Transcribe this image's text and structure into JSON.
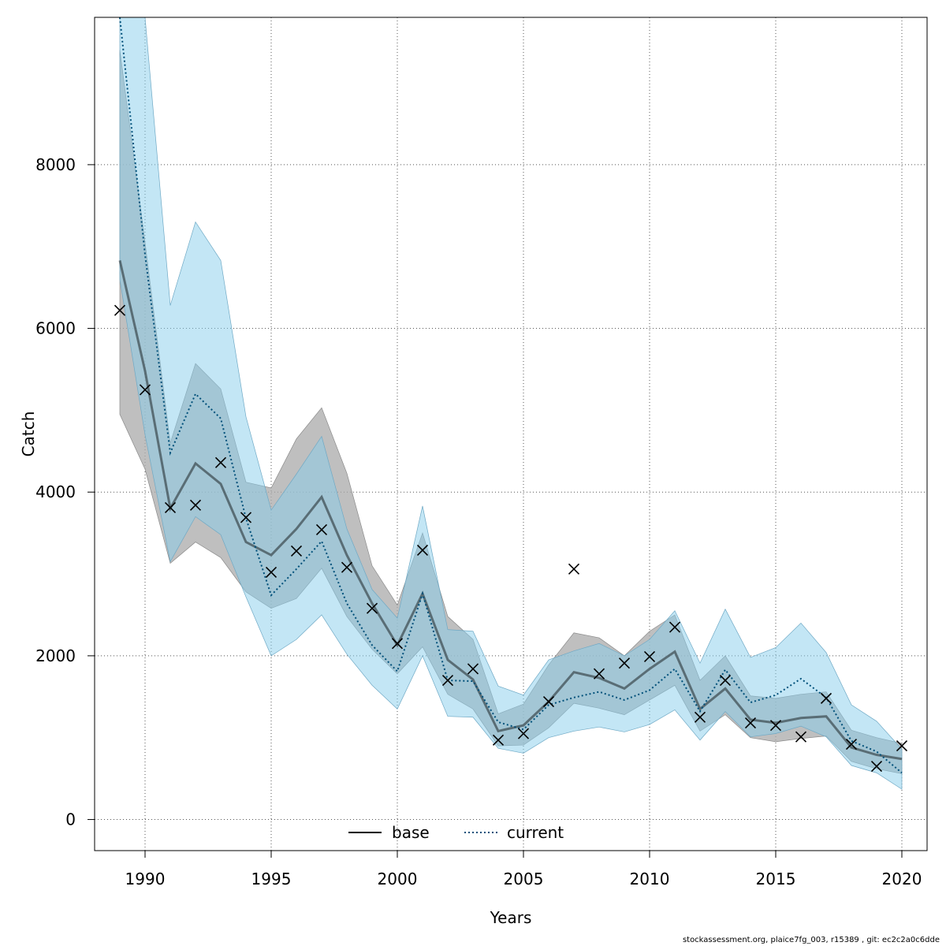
{
  "chart_data": {
    "type": "line",
    "xlabel": "Years",
    "ylabel": "Catch",
    "xlim": [
      1988,
      2021
    ],
    "ylim": [
      -380,
      9800
    ],
    "x_ticks": [
      1990,
      1995,
      2000,
      2005,
      2010,
      2015,
      2020
    ],
    "y_ticks": [
      0,
      2000,
      4000,
      6000,
      8000
    ],
    "grid": true,
    "legend_position": "bottom-center",
    "colors": {
      "base_line": "#000000",
      "base_band": "#a9a9a9",
      "current_line": "#00507a",
      "current_band": "#87ceeb",
      "observed": "#000000"
    },
    "x": [
      1989,
      1990,
      1991,
      1992,
      1993,
      1994,
      1995,
      1996,
      1997,
      1998,
      1999,
      2000,
      2001,
      2002,
      2003,
      2004,
      2005,
      2006,
      2007,
      2008,
      2009,
      2010,
      2011,
      2012,
      2013,
      2014,
      2015,
      2016,
      2017,
      2018,
      2019,
      2020
    ],
    "series": [
      {
        "name": "base",
        "style": "solid",
        "values": [
          6830,
          5480,
          3800,
          4350,
          4100,
          3390,
          3230,
          3550,
          3940,
          3230,
          2640,
          2130,
          2760,
          1950,
          1710,
          1080,
          1150,
          1440,
          1800,
          1730,
          1600,
          1840,
          2050,
          1350,
          1600,
          1220,
          1180,
          1240,
          1260,
          880,
          790,
          740
        ],
        "lower": [
          4950,
          4280,
          3130,
          3390,
          3200,
          2780,
          2580,
          2700,
          3070,
          2480,
          2080,
          1780,
          2110,
          1530,
          1350,
          900,
          910,
          1120,
          1420,
          1360,
          1280,
          1460,
          1640,
          1080,
          1280,
          1000,
          950,
          990,
          1020,
          710,
          620,
          560
        ],
        "upper": [
          9400,
          7050,
          4600,
          5570,
          5260,
          4120,
          4050,
          4650,
          5030,
          4230,
          3100,
          2620,
          3500,
          2480,
          2200,
          1290,
          1410,
          1890,
          2280,
          2220,
          2000,
          2300,
          2500,
          1700,
          2000,
          1510,
          1480,
          1530,
          1560,
          1090,
          1000,
          930
        ]
      },
      {
        "name": "current",
        "style": "dotted",
        "values": [
          9800,
          6900,
          4480,
          5200,
          4900,
          3680,
          2740,
          3060,
          3400,
          2640,
          2130,
          1810,
          2760,
          1700,
          1690,
          1190,
          1100,
          1400,
          1490,
          1560,
          1460,
          1580,
          1840,
          1320,
          1830,
          1430,
          1520,
          1720,
          1490,
          960,
          830,
          570
        ],
        "lower": [
          6600,
          4700,
          3150,
          3700,
          3480,
          2720,
          2000,
          2200,
          2500,
          2020,
          1640,
          1350,
          2000,
          1260,
          1250,
          870,
          810,
          1000,
          1080,
          1130,
          1070,
          1160,
          1340,
          970,
          1320,
          1010,
          1050,
          1140,
          1010,
          660,
          570,
          370
        ],
        "upper": [
          10600,
          10300,
          6280,
          7300,
          6830,
          4920,
          3780,
          4220,
          4680,
          3550,
          2810,
          2460,
          3830,
          2320,
          2300,
          1630,
          1520,
          1950,
          2060,
          2150,
          2000,
          2200,
          2550,
          1910,
          2570,
          1980,
          2100,
          2400,
          2040,
          1400,
          1200,
          860
        ]
      }
    ],
    "observed": {
      "values": [
        6220,
        5250,
        3810,
        3840,
        4360,
        3690,
        3020,
        3280,
        3540,
        3080,
        2580,
        2150,
        3290,
        1700,
        1840,
        970,
        1050,
        1440,
        3060,
        1780,
        1910,
        1990,
        2350,
        1250,
        1700,
        1180,
        1150,
        1010,
        1480,
        920,
        650,
        900
      ]
    },
    "legend": [
      {
        "label": "base",
        "style": "solid"
      },
      {
        "label": "current",
        "style": "dotted"
      }
    ],
    "footer": "stockassessment.org, plaice7fg_003, r15389 , git: ec2c2a0c6dde"
  }
}
